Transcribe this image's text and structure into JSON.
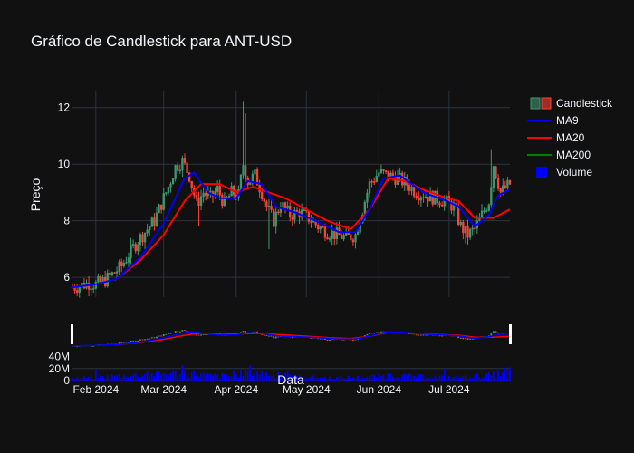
{
  "chart_data": {
    "type": "candlestick",
    "title": "Gráfico de Candlestick para ANT-USD",
    "xlabel": "Data",
    "ylabel": "Preço",
    "colors": {
      "background": "#111111",
      "grid": "#283442",
      "up": "#3D9970",
      "down": "#FF4136",
      "ma9": "#0000FF",
      "ma20": "#FF0000",
      "ma200": "#008000",
      "volume": "#0000FF",
      "text": "#f2f5fa"
    },
    "x_ticks": [
      "Feb 2024",
      "Mar 2024",
      "Apr 2024",
      "May 2024",
      "Jun 2024",
      "Jul 2024"
    ],
    "x_tick_dates": [
      "2024-02-01",
      "2024-03-01",
      "2024-04-01",
      "2024-05-01",
      "2024-06-01",
      "2024-07-01"
    ],
    "x_range": [
      "2024-01-22",
      "2024-07-27"
    ],
    "y_ticks": [
      6,
      8,
      10,
      12
    ],
    "y_range": [
      5.3,
      12.6
    ],
    "legend": {
      "placement": "top-right",
      "items": [
        {
          "label": "Candlestick",
          "key": "candlestick"
        },
        {
          "label": "MA9",
          "key": "ma9"
        },
        {
          "label": "MA20",
          "key": "ma20"
        },
        {
          "label": "MA200",
          "key": "ma200"
        },
        {
          "label": "Volume",
          "key": "volume"
        }
      ]
    },
    "price_close_anchors": [
      [
        "2024-01-22",
        5.65
      ],
      [
        "2024-01-25",
        5.7
      ],
      [
        "2024-01-29",
        5.8
      ],
      [
        "2024-02-01",
        5.75
      ],
      [
        "2024-02-05",
        5.9
      ],
      [
        "2024-02-08",
        6.1
      ],
      [
        "2024-02-12",
        6.4
      ],
      [
        "2024-02-15",
        6.8
      ],
      [
        "2024-02-19",
        7.3
      ],
      [
        "2024-02-22",
        7.6
      ],
      [
        "2024-02-26",
        8.0
      ],
      [
        "2024-02-29",
        8.6
      ],
      [
        "2024-03-03",
        9.2
      ],
      [
        "2024-03-06",
        9.9
      ],
      [
        "2024-03-09",
        10.1
      ],
      [
        "2024-03-12",
        9.6
      ],
      [
        "2024-03-15",
        8.6
      ],
      [
        "2024-03-18",
        9.0
      ],
      [
        "2024-03-21",
        8.8
      ],
      [
        "2024-03-24",
        9.1
      ],
      [
        "2024-03-27",
        8.6
      ],
      [
        "2024-03-30",
        9.0
      ],
      [
        "2024-04-02",
        8.9
      ],
      [
        "2024-04-04",
        10.0
      ],
      [
        "2024-04-06",
        9.4
      ],
      [
        "2024-04-09",
        9.6
      ],
      [
        "2024-04-12",
        9.0
      ],
      [
        "2024-04-14",
        8.5
      ],
      [
        "2024-04-17",
        8.0
      ],
      [
        "2024-04-20",
        8.6
      ],
      [
        "2024-04-24",
        8.2
      ],
      [
        "2024-04-28",
        8.3
      ],
      [
        "2024-05-02",
        8.1
      ],
      [
        "2024-05-06",
        7.8
      ],
      [
        "2024-05-10",
        7.6
      ],
      [
        "2024-05-14",
        7.5
      ],
      [
        "2024-05-18",
        7.4
      ],
      [
        "2024-05-22",
        7.5
      ],
      [
        "2024-05-25",
        8.4
      ],
      [
        "2024-05-28",
        9.3
      ],
      [
        "2024-06-01",
        9.7
      ],
      [
        "2024-06-05",
        9.6
      ],
      [
        "2024-06-09",
        9.5
      ],
      [
        "2024-06-13",
        9.3
      ],
      [
        "2024-06-17",
        9.0
      ],
      [
        "2024-06-21",
        8.9
      ],
      [
        "2024-06-25",
        8.8
      ],
      [
        "2024-06-29",
        8.7
      ],
      [
        "2024-07-03",
        8.5
      ],
      [
        "2024-07-06",
        7.8
      ],
      [
        "2024-07-09",
        7.5
      ],
      [
        "2024-07-12",
        7.7
      ],
      [
        "2024-07-15",
        8.2
      ],
      [
        "2024-07-18",
        8.7
      ],
      [
        "2024-07-20",
        10.0
      ],
      [
        "2024-07-23",
        9.0
      ],
      [
        "2024-07-27",
        9.3
      ]
    ],
    "ma9_anchors": [
      [
        "2024-01-22",
        5.65
      ],
      [
        "2024-02-01",
        5.75
      ],
      [
        "2024-02-10",
        5.95
      ],
      [
        "2024-02-20",
        6.7
      ],
      [
        "2024-03-01",
        7.9
      ],
      [
        "2024-03-10",
        9.5
      ],
      [
        "2024-03-14",
        9.7
      ],
      [
        "2024-03-20",
        9.0
      ],
      [
        "2024-03-25",
        8.8
      ],
      [
        "2024-04-01",
        8.8
      ],
      [
        "2024-04-06",
        9.4
      ],
      [
        "2024-04-12",
        9.3
      ],
      [
        "2024-04-18",
        8.5
      ],
      [
        "2024-04-26",
        8.3
      ],
      [
        "2024-05-05",
        8.0
      ],
      [
        "2024-05-15",
        7.6
      ],
      [
        "2024-05-22",
        7.6
      ],
      [
        "2024-05-28",
        8.4
      ],
      [
        "2024-06-03",
        9.5
      ],
      [
        "2024-06-10",
        9.6
      ],
      [
        "2024-06-20",
        9.0
      ],
      [
        "2024-06-30",
        8.7
      ],
      [
        "2024-07-05",
        8.5
      ],
      [
        "2024-07-12",
        7.8
      ],
      [
        "2024-07-18",
        8.2
      ],
      [
        "2024-07-22",
        8.9
      ],
      [
        "2024-07-27",
        9.1
      ]
    ],
    "ma20_anchors": [
      [
        "2024-02-09",
        5.9
      ],
      [
        "2024-02-20",
        6.6
      ],
      [
        "2024-03-01",
        7.5
      ],
      [
        "2024-03-10",
        8.7
      ],
      [
        "2024-03-17",
        9.3
      ],
      [
        "2024-03-25",
        9.3
      ],
      [
        "2024-04-01",
        9.0
      ],
      [
        "2024-04-08",
        9.2
      ],
      [
        "2024-04-15",
        9.0
      ],
      [
        "2024-04-22",
        8.8
      ],
      [
        "2024-05-01",
        8.4
      ],
      [
        "2024-05-10",
        8.0
      ],
      [
        "2024-05-20",
        7.7
      ],
      [
        "2024-05-28",
        8.4
      ],
      [
        "2024-06-05",
        9.5
      ],
      [
        "2024-06-12",
        9.4
      ],
      [
        "2024-06-20",
        9.1
      ],
      [
        "2024-06-30",
        8.8
      ],
      [
        "2024-07-05",
        8.7
      ],
      [
        "2024-07-12",
        8.1
      ],
      [
        "2024-07-20",
        8.1
      ],
      [
        "2024-07-27",
        8.4
      ]
    ],
    "volume_anchors": [
      [
        "2024-01-22",
        4
      ],
      [
        "2024-02-01",
        6
      ],
      [
        "2024-02-10",
        8
      ],
      [
        "2024-02-20",
        10
      ],
      [
        "2024-03-01",
        12
      ],
      [
        "2024-03-10",
        15
      ],
      [
        "2024-03-20",
        9
      ],
      [
        "2024-04-01",
        8
      ],
      [
        "2024-04-06",
        18
      ],
      [
        "2024-04-15",
        11
      ],
      [
        "2024-04-25",
        7
      ],
      [
        "2024-05-10",
        5
      ],
      [
        "2024-05-25",
        6
      ],
      [
        "2024-06-05",
        9
      ],
      [
        "2024-06-20",
        7
      ],
      [
        "2024-07-05",
        6
      ],
      [
        "2024-07-20",
        10
      ],
      [
        "2024-07-27",
        18
      ]
    ],
    "volume_ticks": [
      {
        "value": 0,
        "label": "0"
      },
      {
        "value": 20,
        "label": "20M"
      },
      {
        "value": 40,
        "label": "40M"
      }
    ],
    "volume_range": [
      0,
      50
    ]
  }
}
